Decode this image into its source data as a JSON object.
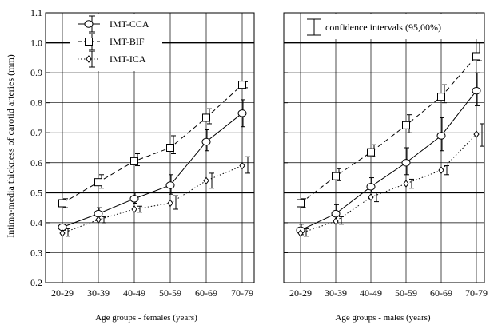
{
  "shared": {
    "ylabel": "Intima-media thickness of carotid arteries (mm)",
    "yticks": [
      "0.2",
      "0.3",
      "0.4",
      "0.5",
      "0.6",
      "0.7",
      "0.8",
      "0.9",
      "1.0",
      "1.1"
    ],
    "legend_left": [
      "IMT-CCA",
      "IMT-BIF",
      "IMT-ICA"
    ],
    "legend_right": "confidence intervals (95,00%)"
  },
  "chart_data": [
    {
      "type": "line",
      "panel": "females",
      "xlabel": "Age groups - females (years)",
      "ylabel": "Intima-media thickness of carotid arteries (mm)",
      "categories": [
        "20-29",
        "30-39",
        "40-49",
        "50-59",
        "60-69",
        "70-79"
      ],
      "ylim": [
        0.2,
        1.1
      ],
      "grid": true,
      "legend": "top-left",
      "series": [
        {
          "name": "IMT-CCA",
          "marker": "circle",
          "line": "solid",
          "values": [
            0.385,
            0.43,
            0.48,
            0.525,
            0.67,
            0.765
          ],
          "ci_low": [
            0.375,
            0.41,
            0.465,
            0.495,
            0.64,
            0.72
          ],
          "ci_high": [
            0.395,
            0.45,
            0.5,
            0.56,
            0.71,
            0.81
          ]
        },
        {
          "name": "IMT-BIF",
          "marker": "square",
          "line": "dashed",
          "values": [
            0.465,
            0.535,
            0.605,
            0.65,
            0.75,
            0.86
          ],
          "ci_low": [
            0.45,
            0.515,
            0.59,
            0.63,
            0.73,
            0.85
          ],
          "ci_high": [
            0.48,
            0.56,
            0.63,
            0.69,
            0.78,
            0.87
          ]
        },
        {
          "name": "IMT-ICA",
          "marker": "diamond",
          "line": "dotted",
          "values": [
            0.365,
            0.41,
            0.445,
            0.465,
            0.54,
            0.59
          ],
          "ci_low": [
            0.355,
            0.4,
            0.435,
            0.445,
            0.515,
            0.565
          ],
          "ci_high": [
            0.38,
            0.42,
            0.455,
            0.49,
            0.565,
            0.62
          ]
        }
      ]
    },
    {
      "type": "line",
      "panel": "males",
      "xlabel": "Age groups  - males (years)",
      "ylabel": "",
      "categories": [
        "20-29",
        "30-39",
        "40-49",
        "50-59",
        "60-69",
        "70-79"
      ],
      "ylim": [
        0.2,
        1.1
      ],
      "grid": true,
      "legend": "top-right",
      "series": [
        {
          "name": "IMT-CCA",
          "marker": "circle",
          "line": "solid",
          "values": [
            0.375,
            0.43,
            0.52,
            0.6,
            0.69,
            0.84
          ],
          "ci_low": [
            0.36,
            0.4,
            0.5,
            0.56,
            0.64,
            0.79
          ],
          "ci_high": [
            0.395,
            0.46,
            0.55,
            0.65,
            0.75,
            0.9
          ]
        },
        {
          "name": "IMT-BIF",
          "marker": "square",
          "line": "dashed",
          "values": [
            0.465,
            0.555,
            0.635,
            0.725,
            0.82,
            0.955
          ],
          "ci_low": [
            0.45,
            0.54,
            0.62,
            0.7,
            0.8,
            0.94
          ],
          "ci_high": [
            0.48,
            0.58,
            0.66,
            0.76,
            0.86,
            1.0
          ]
        },
        {
          "name": "IMT-ICA",
          "marker": "diamond",
          "line": "dotted",
          "values": [
            0.365,
            0.405,
            0.485,
            0.53,
            0.575,
            0.695
          ],
          "ci_low": [
            0.355,
            0.395,
            0.47,
            0.515,
            0.56,
            0.655
          ],
          "ci_high": [
            0.38,
            0.42,
            0.5,
            0.545,
            0.59,
            0.73
          ]
        }
      ]
    }
  ]
}
